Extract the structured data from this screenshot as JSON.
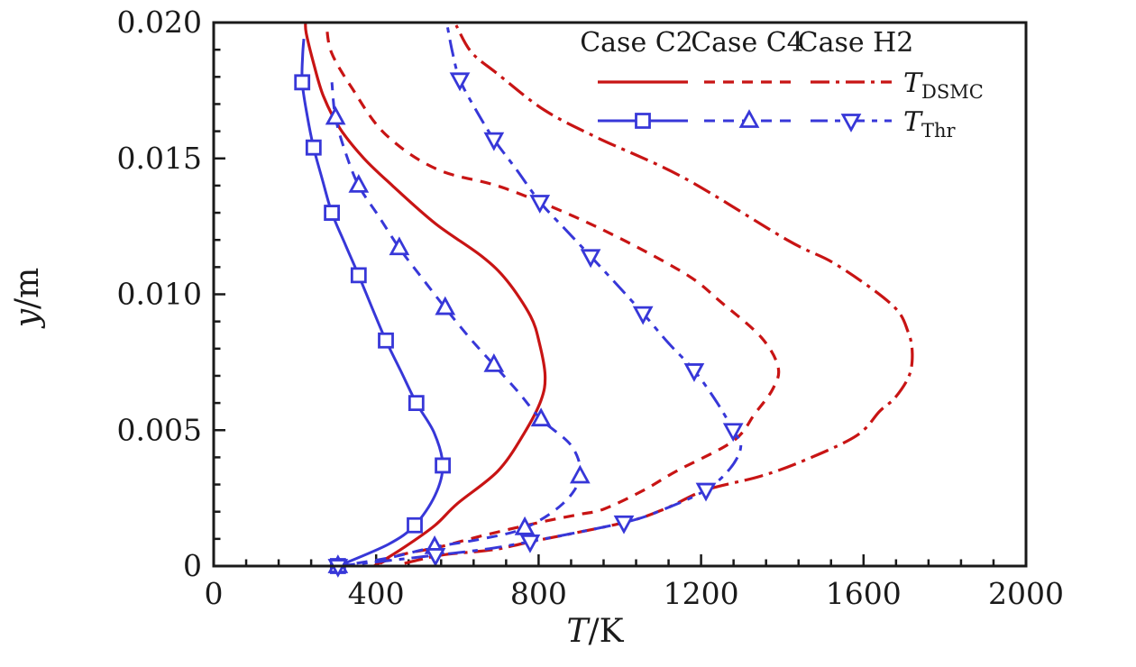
{
  "colors": {
    "red": "#c81414",
    "blue": "#3737d8",
    "axis": "#1a1a1a",
    "background": "#ffffff"
  },
  "axes": {
    "x": {
      "var": "T",
      "unit": "/K",
      "ticks": [
        0,
        400,
        800,
        1200,
        1600,
        2000
      ],
      "tick_labels": [
        "0",
        "400",
        "800",
        "1200",
        "1600",
        "2000"
      ],
      "minor_divisions": 5
    },
    "y": {
      "var": "y",
      "unit": "/m",
      "ticks": [
        0,
        0.005,
        0.01,
        0.015,
        0.02
      ],
      "tick_labels": [
        "0",
        "0.005",
        "0.010",
        "0.015",
        "0.020"
      ],
      "minor_divisions": 5
    }
  },
  "legend": {
    "columns": [
      "Case C2",
      "Case C4",
      "Case H2"
    ],
    "rows": [
      {
        "var": "T",
        "sub": "DSMC"
      },
      {
        "var": "T",
        "sub": "Thr"
      }
    ]
  },
  "chart_data": {
    "type": "line",
    "xlabel": "T/K",
    "ylabel": "y/m",
    "xlim": [
      0,
      2000
    ],
    "ylim": [
      0,
      0.02
    ],
    "grid": false,
    "legend_position": "top-right-inside",
    "series": [
      {
        "name": "C2-DSMC",
        "case": "Case C2",
        "quantity": "T_DSMC",
        "color": "red",
        "line": "solid",
        "marker": null,
        "points": [
          [
            395,
            0
          ],
          [
            470,
            0.0007
          ],
          [
            545,
            0.0015
          ],
          [
            600,
            0.0023
          ],
          [
            700,
            0.0035
          ],
          [
            765,
            0.0049
          ],
          [
            806,
            0.0061
          ],
          [
            816,
            0.007
          ],
          [
            802,
            0.0082
          ],
          [
            780,
            0.0092
          ],
          [
            722,
            0.0105
          ],
          [
            660,
            0.0114
          ],
          [
            546,
            0.0126
          ],
          [
            440,
            0.014
          ],
          [
            370,
            0.015
          ],
          [
            311,
            0.0161
          ],
          [
            270,
            0.0173
          ],
          [
            246,
            0.0185
          ],
          [
            228,
            0.0196
          ],
          [
            226,
            0.02
          ]
        ],
        "marker_points": []
      },
      {
        "name": "C4-DSMC",
        "case": "Case C4",
        "quantity": "T_DSMC",
        "color": "red",
        "line": "dashed",
        "marker": null,
        "points": [
          [
            410,
            0.0001
          ],
          [
            457,
            0.0004
          ],
          [
            555,
            0.0007
          ],
          [
            657,
            0.0011
          ],
          [
            800,
            0.0016
          ],
          [
            900,
            0.0019
          ],
          [
            961,
            0.0021
          ],
          [
            1060,
            0.0028
          ],
          [
            1140,
            0.0035
          ],
          [
            1279,
            0.0046
          ],
          [
            1332,
            0.0056
          ],
          [
            1376,
            0.0065
          ],
          [
            1390,
            0.0073
          ],
          [
            1349,
            0.0084
          ],
          [
            1250,
            0.0097
          ],
          [
            1156,
            0.0108
          ],
          [
            940,
            0.0125
          ],
          [
            717,
            0.0139
          ],
          [
            550,
            0.0146
          ],
          [
            422,
            0.0159
          ],
          [
            340,
            0.0176
          ],
          [
            290,
            0.0189
          ],
          [
            278,
            0.0199
          ]
        ],
        "marker_points": []
      },
      {
        "name": "H2-DSMC",
        "case": "Case H2",
        "quantity": "T_DSMC",
        "color": "red",
        "line": "dash-dot",
        "marker": null,
        "points": [
          [
            470,
            0.0001
          ],
          [
            560,
            0.0004
          ],
          [
            688,
            0.0006
          ],
          [
            783,
            0.0009
          ],
          [
            1010,
            0.0016
          ],
          [
            1110,
            0.0021
          ],
          [
            1212,
            0.0028
          ],
          [
            1345,
            0.0033
          ],
          [
            1456,
            0.0039
          ],
          [
            1583,
            0.0048
          ],
          [
            1640,
            0.0057
          ],
          [
            1678,
            0.0062
          ],
          [
            1712,
            0.007
          ],
          [
            1720,
            0.0078
          ],
          [
            1710,
            0.0086
          ],
          [
            1671,
            0.0096
          ],
          [
            1532,
            0.0111
          ],
          [
            1412,
            0.012
          ],
          [
            1156,
            0.0143
          ],
          [
            939,
            0.0158
          ],
          [
            812,
            0.0168
          ],
          [
            700,
            0.0181
          ],
          [
            635,
            0.0189
          ],
          [
            597,
            0.0199
          ]
        ],
        "marker_points": []
      },
      {
        "name": "C2-Thr",
        "case": "Case C2",
        "quantity": "T_Thr",
        "color": "blue",
        "line": "solid",
        "marker": "square",
        "points": [
          [
            306,
            0
          ],
          [
            430,
            0.0008
          ],
          [
            495,
            0.0015
          ],
          [
            545,
            0.0026
          ],
          [
            564,
            0.0037
          ],
          [
            543,
            0.0049
          ],
          [
            499,
            0.006
          ],
          [
            460,
            0.0072
          ],
          [
            424,
            0.0083
          ],
          [
            390,
            0.0095
          ],
          [
            357,
            0.0107
          ],
          [
            322,
            0.0119
          ],
          [
            291,
            0.013
          ],
          [
            268,
            0.0142
          ],
          [
            246,
            0.0154
          ],
          [
            230,
            0.0166
          ],
          [
            218,
            0.0178
          ],
          [
            219,
            0.0188
          ],
          [
            222,
            0.0194
          ]
        ],
        "marker_points": [
          [
            306,
            0
          ],
          [
            495,
            0.0015
          ],
          [
            564,
            0.0037
          ],
          [
            499,
            0.006
          ],
          [
            424,
            0.0083
          ],
          [
            357,
            0.0107
          ],
          [
            291,
            0.013
          ],
          [
            246,
            0.0154
          ],
          [
            218,
            0.0178
          ]
        ]
      },
      {
        "name": "C4-Thr",
        "case": "Case C4",
        "quantity": "T_Thr",
        "color": "blue",
        "line": "dashed",
        "marker": "triangle-up",
        "points": [
          [
            306,
            0
          ],
          [
            430,
            0.0003
          ],
          [
            544,
            0.0007
          ],
          [
            660,
            0.001
          ],
          [
            766,
            0.0014
          ],
          [
            860,
            0.0023
          ],
          [
            902,
            0.0033
          ],
          [
            882,
            0.0044
          ],
          [
            806,
            0.0054
          ],
          [
            750,
            0.0064
          ],
          [
            690,
            0.0074
          ],
          [
            630,
            0.0084
          ],
          [
            570,
            0.0095
          ],
          [
            513,
            0.0106
          ],
          [
            457,
            0.0117
          ],
          [
            405,
            0.0129
          ],
          [
            357,
            0.014
          ],
          [
            325,
            0.0152
          ],
          [
            300,
            0.0165
          ],
          [
            291,
            0.0178
          ]
        ],
        "marker_points": [
          [
            306,
            0
          ],
          [
            544,
            0.0007
          ],
          [
            766,
            0.0014
          ],
          [
            902,
            0.0033
          ],
          [
            806,
            0.0054
          ],
          [
            690,
            0.0074
          ],
          [
            570,
            0.0095
          ],
          [
            457,
            0.0117
          ],
          [
            357,
            0.014
          ],
          [
            300,
            0.0165
          ]
        ]
      },
      {
        "name": "H2-Thr",
        "case": "Case H2",
        "quantity": "T_Thr",
        "color": "blue",
        "line": "long-dash-dot",
        "marker": "triangle-down",
        "points": [
          [
            306,
            0
          ],
          [
            430,
            0.0002
          ],
          [
            546,
            0.0004
          ],
          [
            660,
            0.0006
          ],
          [
            779,
            0.0009
          ],
          [
            1010,
            0.0016
          ],
          [
            1110,
            0.0021
          ],
          [
            1212,
            0.0028
          ],
          [
            1272,
            0.0036
          ],
          [
            1298,
            0.0044
          ],
          [
            1279,
            0.005
          ],
          [
            1240,
            0.006
          ],
          [
            1183,
            0.0072
          ],
          [
            1120,
            0.0082
          ],
          [
            1057,
            0.0093
          ],
          [
            990,
            0.0104
          ],
          [
            928,
            0.0114
          ],
          [
            865,
            0.0124
          ],
          [
            803,
            0.0134
          ],
          [
            745,
            0.0146
          ],
          [
            690,
            0.0157
          ],
          [
            645,
            0.0168
          ],
          [
            606,
            0.0179
          ],
          [
            588,
            0.0189
          ],
          [
            575,
            0.0199
          ]
        ],
        "marker_points": [
          [
            306,
            0
          ],
          [
            546,
            0.0004
          ],
          [
            779,
            0.0009
          ],
          [
            1010,
            0.0016
          ],
          [
            1212,
            0.0028
          ],
          [
            1279,
            0.005
          ],
          [
            1183,
            0.0072
          ],
          [
            1057,
            0.0093
          ],
          [
            928,
            0.0114
          ],
          [
            803,
            0.0134
          ],
          [
            690,
            0.0157
          ],
          [
            606,
            0.0179
          ]
        ]
      }
    ]
  }
}
